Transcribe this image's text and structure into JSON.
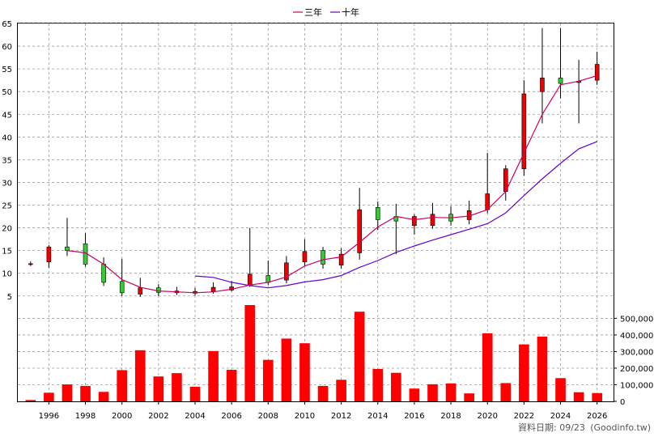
{
  "chart_data": {
    "type": "candlestick+bar",
    "legend": [
      {
        "name": "三年",
        "color": "#cc0066"
      },
      {
        "name": "十年",
        "color": "#6600cc"
      }
    ],
    "price_axis": {
      "ylim": [
        3,
        65
      ],
      "ticks": [
        5,
        10,
        15,
        20,
        25,
        30,
        35,
        40,
        45,
        50,
        55,
        60,
        65
      ]
    },
    "volume_axis": {
      "ylim": [
        0,
        580000
      ],
      "ticks": [
        0,
        100000,
        200000,
        300000,
        400000,
        500000
      ],
      "tick_labels": [
        "0",
        "100,000",
        "200,000",
        "300,000",
        "400,000",
        "500,000"
      ]
    },
    "x_axis": {
      "ticks": [
        1996,
        1998,
        2000,
        2002,
        2004,
        2006,
        2008,
        2010,
        2012,
        2014,
        2016,
        2018,
        2020,
        2022,
        2024,
        2026
      ]
    },
    "candles": [
      {
        "year": 1995,
        "open": 12,
        "close": 12.1,
        "high": 12.6,
        "low": 11.6
      },
      {
        "year": 1996,
        "open": 12.5,
        "close": 15.8,
        "high": 16.2,
        "low": 11.2
      },
      {
        "year": 1997,
        "open": 15.8,
        "close": 15.0,
        "high": 22.2,
        "low": 13.8
      },
      {
        "year": 1998,
        "open": 16.5,
        "close": 12.0,
        "high": 18.8,
        "low": 11.5
      },
      {
        "year": 1999,
        "open": 12.0,
        "close": 8.0,
        "high": 13.5,
        "low": 7.2
      },
      {
        "year": 2000,
        "open": 8.2,
        "close": 5.7,
        "high": 13.2,
        "low": 5.0
      },
      {
        "year": 2001,
        "open": 5.4,
        "close": 6.8,
        "high": 9.0,
        "low": 4.8
      },
      {
        "year": 2002,
        "open": 6.8,
        "close": 5.8,
        "high": 7.6,
        "low": 5.0
      },
      {
        "year": 2003,
        "open": 5.7,
        "close": 6.1,
        "high": 7.0,
        "low": 5.2
      },
      {
        "year": 2004,
        "open": 5.6,
        "close": 6.0,
        "high": 6.8,
        "low": 5.1
      },
      {
        "year": 2005,
        "open": 6.0,
        "close": 6.9,
        "high": 8.0,
        "low": 5.5
      },
      {
        "year": 2006,
        "open": 6.3,
        "close": 7.0,
        "high": 8.3,
        "low": 6.0
      },
      {
        "year": 2007,
        "open": 7.3,
        "close": 9.8,
        "high": 20.0,
        "low": 7.0
      },
      {
        "year": 2008,
        "open": 9.5,
        "close": 8.0,
        "high": 12.8,
        "low": 7.4
      },
      {
        "year": 2009,
        "open": 8.5,
        "close": 12.3,
        "high": 13.8,
        "low": 7.8
      },
      {
        "year": 2010,
        "open": 12.5,
        "close": 14.8,
        "high": 17.5,
        "low": 11.5
      },
      {
        "year": 2011,
        "open": 15.0,
        "close": 12.0,
        "high": 15.8,
        "low": 11.0
      },
      {
        "year": 2012,
        "open": 11.8,
        "close": 14.2,
        "high": 15.5,
        "low": 11.0
      },
      {
        "year": 2013,
        "open": 14.5,
        "close": 24.0,
        "high": 28.8,
        "low": 13.0
      },
      {
        "year": 2014,
        "open": 24.5,
        "close": 21.8,
        "high": 25.8,
        "low": 19.5
      },
      {
        "year": 2015,
        "open": 22.5,
        "close": 21.5,
        "high": 25.3,
        "low": 14.2
      },
      {
        "year": 2016,
        "open": 20.5,
        "close": 22.5,
        "high": 23.0,
        "low": 18.5
      },
      {
        "year": 2017,
        "open": 20.5,
        "close": 23.0,
        "high": 25.5,
        "low": 19.8
      },
      {
        "year": 2018,
        "open": 23.0,
        "close": 21.5,
        "high": 24.8,
        "low": 20.5
      },
      {
        "year": 2019,
        "open": 21.8,
        "close": 23.8,
        "high": 26.0,
        "low": 20.8
      },
      {
        "year": 2020,
        "open": 24.0,
        "close": 27.5,
        "high": 36.5,
        "low": 23.2
      },
      {
        "year": 2021,
        "open": 28.0,
        "close": 33.0,
        "high": 33.8,
        "low": 26.0
      },
      {
        "year": 2022,
        "open": 33.0,
        "close": 49.5,
        "high": 52.5,
        "low": 31.5
      },
      {
        "year": 2023,
        "open": 50.0,
        "close": 53.0,
        "high": 64.0,
        "low": 43.0
      },
      {
        "year": 2024,
        "open": 53.0,
        "close": 51.8,
        "high": 64.0,
        "low": 48.5
      },
      {
        "year": 2025,
        "open": 52.0,
        "close": 52.3,
        "high": 57.0,
        "low": 43.0
      },
      {
        "year": 2026,
        "open": 52.5,
        "close": 56.0,
        "high": 58.8,
        "low": 51.5
      }
    ],
    "ma3": {
      "name": "三年",
      "points": [
        [
          1997,
          15.0
        ],
        [
          1998,
          14.5
        ],
        [
          1999,
          12.0
        ],
        [
          2000,
          8.6
        ],
        [
          2001,
          6.9
        ],
        [
          2002,
          6.1
        ],
        [
          2003,
          5.9
        ],
        [
          2004,
          5.7
        ],
        [
          2005,
          5.9
        ],
        [
          2006,
          6.5
        ],
        [
          2007,
          7.4
        ],
        [
          2008,
          8.0
        ],
        [
          2009,
          9.2
        ],
        [
          2010,
          11.6
        ],
        [
          2011,
          13.0
        ],
        [
          2012,
          13.6
        ],
        [
          2013,
          16.8
        ],
        [
          2014,
          20.2
        ],
        [
          2015,
          22.5
        ],
        [
          2016,
          21.8
        ],
        [
          2017,
          22.3
        ],
        [
          2018,
          22.2
        ],
        [
          2019,
          22.6
        ],
        [
          2020,
          24.0
        ],
        [
          2021,
          28.0
        ],
        [
          2022,
          36.5
        ],
        [
          2023,
          45.0
        ],
        [
          2024,
          51.5
        ],
        [
          2025,
          52.3
        ],
        [
          2026,
          53.5
        ]
      ]
    },
    "ma10": {
      "name": "十年",
      "points": [
        [
          2004,
          9.4
        ],
        [
          2005,
          9.1
        ],
        [
          2006,
          8.0
        ],
        [
          2007,
          7.3
        ],
        [
          2008,
          6.8
        ],
        [
          2009,
          7.3
        ],
        [
          2010,
          8.1
        ],
        [
          2011,
          8.6
        ],
        [
          2012,
          9.5
        ],
        [
          2013,
          11.3
        ],
        [
          2014,
          12.8
        ],
        [
          2015,
          14.6
        ],
        [
          2016,
          16.0
        ],
        [
          2017,
          17.3
        ],
        [
          2018,
          18.5
        ],
        [
          2019,
          19.7
        ],
        [
          2020,
          20.9
        ],
        [
          2021,
          23.3
        ],
        [
          2022,
          27.1
        ],
        [
          2023,
          30.8
        ],
        [
          2024,
          34.2
        ],
        [
          2025,
          37.4
        ],
        [
          2026,
          39.0
        ]
      ]
    },
    "volume": [
      {
        "year": 1995,
        "value": 8000
      },
      {
        "year": 1996,
        "value": 52000
      },
      {
        "year": 1997,
        "value": 102000
      },
      {
        "year": 1998,
        "value": 93000
      },
      {
        "year": 1999,
        "value": 57000
      },
      {
        "year": 2000,
        "value": 188000
      },
      {
        "year": 2001,
        "value": 308000
      },
      {
        "year": 2002,
        "value": 150000
      },
      {
        "year": 2003,
        "value": 170000
      },
      {
        "year": 2004,
        "value": 88000
      },
      {
        "year": 2005,
        "value": 303000
      },
      {
        "year": 2006,
        "value": 190000
      },
      {
        "year": 2007,
        "value": 580000
      },
      {
        "year": 2008,
        "value": 250000
      },
      {
        "year": 2009,
        "value": 378000
      },
      {
        "year": 2010,
        "value": 350000
      },
      {
        "year": 2011,
        "value": 93000
      },
      {
        "year": 2012,
        "value": 130000
      },
      {
        "year": 2013,
        "value": 540000
      },
      {
        "year": 2014,
        "value": 195000
      },
      {
        "year": 2015,
        "value": 172000
      },
      {
        "year": 2016,
        "value": 77000
      },
      {
        "year": 2017,
        "value": 103000
      },
      {
        "year": 2018,
        "value": 108000
      },
      {
        "year": 2019,
        "value": 48000
      },
      {
        "year": 2020,
        "value": 410000
      },
      {
        "year": 2021,
        "value": 110000
      },
      {
        "year": 2022,
        "value": 343000
      },
      {
        "year": 2023,
        "value": 390000
      },
      {
        "year": 2024,
        "value": 140000
      },
      {
        "year": 2025,
        "value": 55000
      },
      {
        "year": 2026,
        "value": 50000
      }
    ]
  },
  "footer": {
    "date_note": "資料日期: 09/23",
    "source": "(Goodinfo.tw)"
  }
}
